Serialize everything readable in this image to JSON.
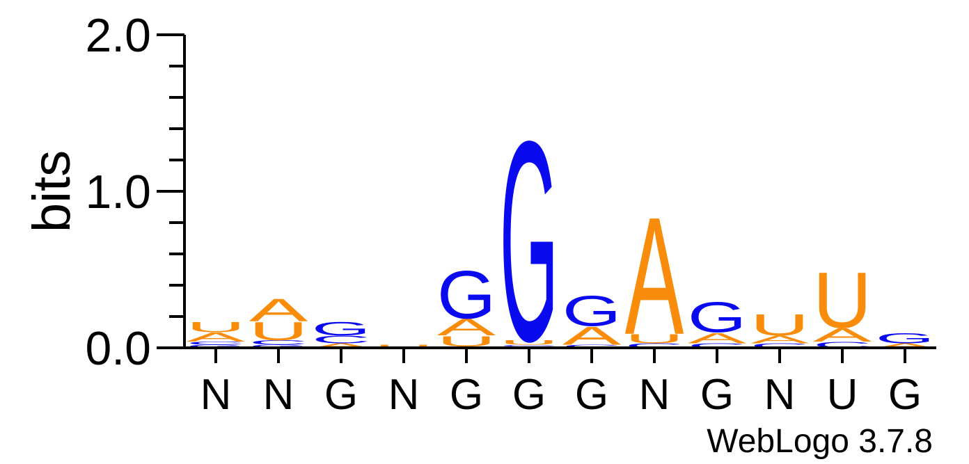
{
  "chart_data": {
    "type": "sequence-logo",
    "ylabel": "bits",
    "ylim": [
      0,
      2.0
    ],
    "yticks": [
      {
        "value": 0,
        "label": "0.0"
      },
      {
        "value": 1,
        "label": "1.0"
      },
      {
        "value": 2,
        "label": "2.0"
      }
    ],
    "yminor_step": 0.2,
    "xtick_labels": [
      "N",
      "N",
      "G",
      "N",
      "G",
      "G",
      "G",
      "N",
      "G",
      "N",
      "U",
      "G"
    ],
    "colors": {
      "A": "#f98c0a",
      "U": "#f98c0a",
      "G": "#0a0aef",
      "C": "#0a0aef"
    },
    "footer": "WebLogo 3.7.8",
    "positions": [
      {
        "stack": [
          [
            "G",
            0.02
          ],
          [
            "C",
            0.02
          ],
          [
            "A",
            0.06
          ],
          [
            "U",
            0.07
          ]
        ]
      },
      {
        "stack": [
          [
            "G",
            0.02
          ],
          [
            "C",
            0.03
          ],
          [
            "U",
            0.12
          ],
          [
            "A",
            0.15
          ]
        ]
      },
      {
        "stack": [
          [
            "A",
            0.03
          ],
          [
            "C",
            0.05
          ],
          [
            "G",
            0.09
          ]
        ]
      },
      {
        "stack": [
          [
            "U",
            0.02
          ]
        ]
      },
      {
        "stack": [
          [
            "C",
            0.01
          ],
          [
            "U",
            0.07
          ],
          [
            "A",
            0.11
          ],
          [
            "G",
            0.32
          ]
        ]
      },
      {
        "stack": [
          [
            "A",
            0.01
          ],
          [
            "C",
            0.01
          ],
          [
            "U",
            0.03
          ],
          [
            "G",
            1.33
          ]
        ]
      },
      {
        "stack": [
          [
            "C",
            0.02
          ],
          [
            "A",
            0.12
          ],
          [
            "G",
            0.2
          ]
        ]
      },
      {
        "stack": [
          [
            "C",
            0.03
          ],
          [
            "U",
            0.06
          ],
          [
            "A",
            0.78
          ]
        ]
      },
      {
        "stack": [
          [
            "C",
            0.03
          ],
          [
            "A",
            0.07
          ],
          [
            "G",
            0.2
          ]
        ]
      },
      {
        "stack": [
          [
            "C",
            0.03
          ],
          [
            "A",
            0.05
          ],
          [
            "U",
            0.14
          ]
        ]
      },
      {
        "stack": [
          [
            "C",
            0.04
          ],
          [
            "A",
            0.09
          ],
          [
            "U",
            0.37
          ]
        ]
      },
      {
        "stack": [
          [
            "A",
            0.03
          ],
          [
            "G",
            0.07
          ]
        ]
      }
    ]
  }
}
